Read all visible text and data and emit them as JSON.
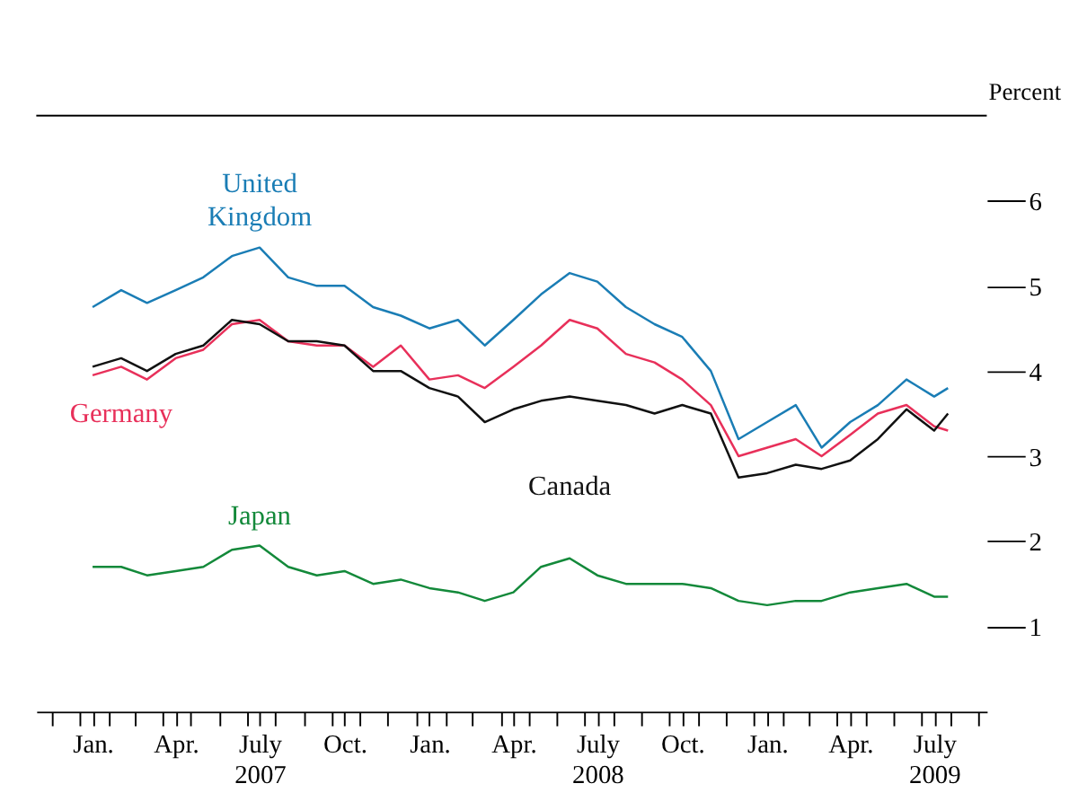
{
  "chart_data": {
    "type": "line",
    "ylabel": "Percent",
    "x": [
      "2007-01-15",
      "2007-02-15",
      "2007-03-15",
      "2007-04-15",
      "2007-05-15",
      "2007-06-15",
      "2007-07-15",
      "2007-08-15",
      "2007-09-15",
      "2007-10-15",
      "2007-11-15",
      "2007-12-15",
      "2008-01-15",
      "2008-02-15",
      "2008-03-15",
      "2008-04-15",
      "2008-05-15",
      "2008-06-15",
      "2008-07-15",
      "2008-08-15",
      "2008-09-15",
      "2008-10-15",
      "2008-11-15",
      "2008-12-15",
      "2009-01-15",
      "2009-02-15",
      "2009-03-15",
      "2009-04-15",
      "2009-05-15",
      "2009-06-15",
      "2009-07-15",
      "2009-07-30"
    ],
    "series": [
      {
        "name": "United Kingdom",
        "color": "#1a7db5",
        "values": [
          4.75,
          4.95,
          4.8,
          4.95,
          5.1,
          5.35,
          5.45,
          5.1,
          5.0,
          5.0,
          4.75,
          4.65,
          4.5,
          4.6,
          4.3,
          4.6,
          4.9,
          5.15,
          5.05,
          4.75,
          4.55,
          4.4,
          4.0,
          3.2,
          3.4,
          3.6,
          3.1,
          3.4,
          3.6,
          3.9,
          3.7,
          3.8
        ]
      },
      {
        "name": "Germany",
        "color": "#e8305a",
        "values": [
          3.95,
          4.05,
          3.9,
          4.15,
          4.25,
          4.55,
          4.6,
          4.35,
          4.3,
          4.3,
          4.05,
          4.3,
          3.9,
          3.95,
          3.8,
          4.05,
          4.3,
          4.6,
          4.5,
          4.2,
          4.1,
          3.9,
          3.6,
          3.0,
          3.1,
          3.2,
          3.0,
          3.25,
          3.5,
          3.6,
          3.35,
          3.3
        ]
      },
      {
        "name": "Canada",
        "color": "#111111",
        "values": [
          4.05,
          4.15,
          4.0,
          4.2,
          4.3,
          4.6,
          4.55,
          4.35,
          4.35,
          4.3,
          4.0,
          4.0,
          3.8,
          3.7,
          3.4,
          3.55,
          3.65,
          3.7,
          3.65,
          3.6,
          3.5,
          3.6,
          3.5,
          2.75,
          2.8,
          2.9,
          2.85,
          2.95,
          3.2,
          3.55,
          3.3,
          3.5
        ]
      },
      {
        "name": "Japan",
        "color": "#13893a",
        "values": [
          1.7,
          1.7,
          1.6,
          1.65,
          1.7,
          1.9,
          1.95,
          1.7,
          1.6,
          1.65,
          1.5,
          1.55,
          1.45,
          1.4,
          1.3,
          1.4,
          1.7,
          1.8,
          1.6,
          1.5,
          1.5,
          1.5,
          1.45,
          1.3,
          1.25,
          1.3,
          1.3,
          1.4,
          1.45,
          1.5,
          1.35,
          1.35
        ]
      }
    ],
    "xlim": [
      "2006-11-15",
      "2009-09-10"
    ],
    "xticks": [
      {
        "value": "2007-01-15",
        "label": "Jan."
      },
      {
        "value": "2007-04-15",
        "label": "Apr."
      },
      {
        "value": "2007-07-15",
        "label": "July\n2007"
      },
      {
        "value": "2007-10-15",
        "label": "Oct."
      },
      {
        "value": "2008-01-15",
        "label": "Jan."
      },
      {
        "value": "2008-04-15",
        "label": "Apr."
      },
      {
        "value": "2008-07-15",
        "label": "July\n2008"
      },
      {
        "value": "2008-10-15",
        "label": "Oct."
      },
      {
        "value": "2009-01-15",
        "label": "Jan."
      },
      {
        "value": "2009-04-15",
        "label": "Apr."
      },
      {
        "value": "2009-07-15",
        "label": "July\n2009"
      },
      {
        "value": "2006-12-01",
        "label": null
      },
      {
        "value": "2007-01-01",
        "label": null
      },
      {
        "value": "2007-02-01",
        "label": null
      },
      {
        "value": "2007-03-01",
        "label": null
      },
      {
        "value": "2007-04-01",
        "label": null
      },
      {
        "value": "2007-05-01",
        "label": null
      },
      {
        "value": "2007-06-01",
        "label": null
      },
      {
        "value": "2007-07-01",
        "label": null
      },
      {
        "value": "2007-08-01",
        "label": null
      },
      {
        "value": "2007-09-01",
        "label": null
      },
      {
        "value": "2007-10-01",
        "label": null
      },
      {
        "value": "2007-11-01",
        "label": null
      },
      {
        "value": "2007-12-01",
        "label": null
      },
      {
        "value": "2008-01-01",
        "label": null
      },
      {
        "value": "2008-02-01",
        "label": null
      },
      {
        "value": "2008-03-01",
        "label": null
      },
      {
        "value": "2008-04-01",
        "label": null
      },
      {
        "value": "2008-05-01",
        "label": null
      },
      {
        "value": "2008-06-01",
        "label": null
      },
      {
        "value": "2008-07-01",
        "label": null
      },
      {
        "value": "2008-08-01",
        "label": null
      },
      {
        "value": "2008-09-01",
        "label": null
      },
      {
        "value": "2008-10-01",
        "label": null
      },
      {
        "value": "2008-11-01",
        "label": null
      },
      {
        "value": "2008-12-01",
        "label": null
      },
      {
        "value": "2009-01-01",
        "label": null
      },
      {
        "value": "2009-02-01",
        "label": null
      },
      {
        "value": "2009-03-01",
        "label": null
      },
      {
        "value": "2009-04-01",
        "label": null
      },
      {
        "value": "2009-05-01",
        "label": null
      },
      {
        "value": "2009-06-01",
        "label": null
      },
      {
        "value": "2009-07-01",
        "label": null
      },
      {
        "value": "2009-08-01",
        "label": null
      },
      {
        "value": "2009-09-01",
        "label": null
      }
    ],
    "ylim": [
      0,
      7
    ],
    "yticks": [
      1,
      2,
      3,
      4,
      5,
      6
    ],
    "grid": false,
    "legend": false,
    "marker": "none",
    "line_style": "solid"
  }
}
